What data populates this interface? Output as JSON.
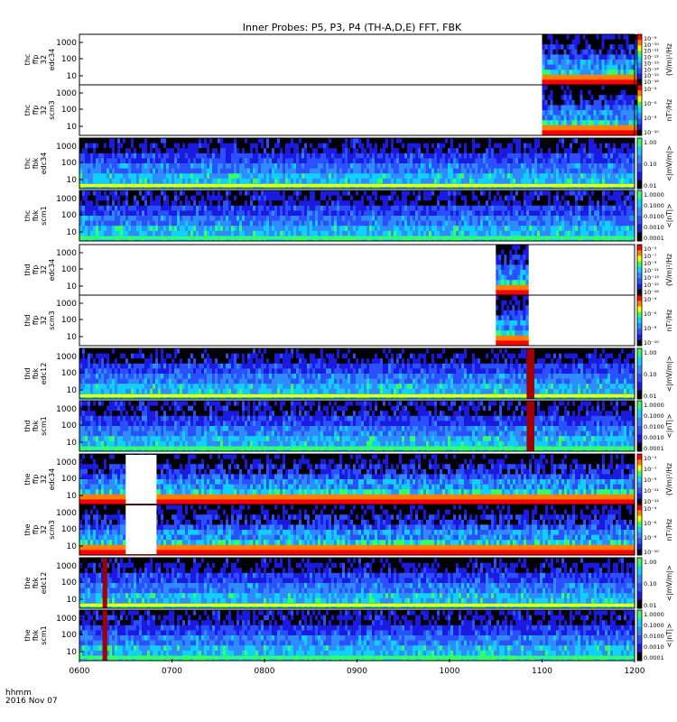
{
  "title": "Inner Probes: P5, P3, P4 (TH-A,D,E) FFT, FBK",
  "footer": {
    "line1": "hhmm",
    "line2": "2016 Nov 07"
  },
  "chart_data": {
    "type": "heatmap",
    "x_ticks": [
      "0600",
      "0700",
      "0800",
      "0900",
      "1000",
      "1100",
      "1200"
    ],
    "xlim": [
      "0600",
      "1200"
    ],
    "log_y": true,
    "panels": [
      {
        "probe": "thc",
        "kind": "ffp",
        "n": "32",
        "chan": "edc34",
        "yticks": [
          "1000",
          "100",
          "10"
        ],
        "cb_ticks": [
          "10⁻⁹",
          "10⁻¹⁰",
          "10⁻¹¹",
          "10⁻¹²",
          "10⁻¹³",
          "10⁻¹⁴",
          "10⁻¹⁵",
          "10⁻¹⁶"
        ],
        "cb_unit": "(V/m)²/Hz",
        "data_start": "1100",
        "data_end": "1200"
      },
      {
        "probe": "thc",
        "kind": "ffp",
        "n": "32",
        "chan": "scm3",
        "yticks": [
          "1000",
          "100",
          "10"
        ],
        "cb_ticks": [
          "10⁻⁴",
          "10⁻⁶",
          "10⁻⁸",
          "10⁻¹⁰"
        ],
        "cb_unit": "nT²/Hz",
        "data_start": "1100",
        "data_end": "1200"
      },
      {
        "probe": "thc",
        "kind": "fbk",
        "n": "",
        "chan": "edc34",
        "yticks": [
          "1000",
          "100",
          "10"
        ],
        "cb_ticks": [
          "1.00",
          "0.10",
          "0.01"
        ],
        "cb_unit": "<|mV/m|>",
        "data_start": "0600",
        "data_end": "1200"
      },
      {
        "probe": "thc",
        "kind": "fbk",
        "n": "",
        "chan": "scm1",
        "yticks": [
          "1000",
          "100",
          "10"
        ],
        "cb_ticks": [
          "1.0000",
          "0.1000",
          "0.0100",
          "0.0010",
          "0.0001"
        ],
        "cb_unit": "<|nT|>",
        "data_start": "0600",
        "data_end": "1200"
      },
      {
        "probe": "thd",
        "kind": "ffp",
        "n": "32",
        "chan": "edc34",
        "yticks": [
          "1000",
          "100",
          "10"
        ],
        "cb_ticks": [
          "10⁻⁵",
          "10⁻⁷",
          "10⁻⁹",
          "10⁻¹¹",
          "10⁻¹³",
          "10⁻¹⁵",
          "10⁻¹⁶"
        ],
        "cb_unit": "(V/m)²/Hz",
        "data_start": "1030",
        "data_end": "1050"
      },
      {
        "probe": "thd",
        "kind": "ffp",
        "n": "32",
        "chan": "scm3",
        "yticks": [
          "1000",
          "100",
          "10"
        ],
        "cb_ticks": [
          "10⁻⁴",
          "10⁻⁶",
          "10⁻⁸",
          "10⁻¹⁰"
        ],
        "cb_unit": "nT²/Hz",
        "data_start": "1030",
        "data_end": "1050"
      },
      {
        "probe": "thd",
        "kind": "fbk",
        "n": "",
        "chan": "edc12",
        "yticks": [
          "1000",
          "100",
          "10"
        ],
        "cb_ticks": [
          "1.00",
          "0.10",
          "0.01"
        ],
        "cb_unit": "<|mV/m|>",
        "data_start": "0600",
        "data_end": "1200"
      },
      {
        "probe": "thd",
        "kind": "fbk",
        "n": "",
        "chan": "scm1",
        "yticks": [
          "1000",
          "100",
          "10"
        ],
        "cb_ticks": [
          "1.0000",
          "0.1000",
          "0.0100",
          "0.0010",
          "0.0001"
        ],
        "cb_unit": "<|nT|>",
        "data_start": "0600",
        "data_end": "1200"
      },
      {
        "probe": "the",
        "kind": "ffp",
        "n": "32",
        "chan": "edc34",
        "yticks": [
          "1000",
          "100",
          "10"
        ],
        "cb_ticks": [
          "10⁻⁵",
          "10⁻⁷",
          "10⁻⁹",
          "10⁻¹¹",
          "10⁻¹²"
        ],
        "cb_unit": "(V/m)²/Hz",
        "data_start": "0600",
        "data_end": "1200"
      },
      {
        "probe": "the",
        "kind": "ffp",
        "n": "32",
        "chan": "scm3",
        "yticks": [
          "1000",
          "100",
          "10"
        ],
        "cb_ticks": [
          "10⁻⁴",
          "10⁻⁶",
          "10⁻⁸",
          "10⁻¹⁰"
        ],
        "cb_unit": "nT²/Hz",
        "data_start": "0600",
        "data_end": "1200"
      },
      {
        "probe": "the",
        "kind": "fbk",
        "n": "",
        "chan": "edc12",
        "yticks": [
          "1000",
          "100",
          "10"
        ],
        "cb_ticks": [
          "1.00",
          "0.10",
          "0.01"
        ],
        "cb_unit": "<|mV/m|>",
        "data_start": "0600",
        "data_end": "1200"
      },
      {
        "probe": "the",
        "kind": "fbk",
        "n": "",
        "chan": "scm1",
        "yticks": [
          "1000",
          "100",
          "10"
        ],
        "cb_ticks": [
          "1.0000",
          "0.1000",
          "0.0100",
          "0.0010",
          "0.0001"
        ],
        "cb_unit": "<|nT|>",
        "data_start": "0600",
        "data_end": "1200"
      }
    ],
    "data_gaps": [
      {
        "panel_group": "the",
        "panels": "ffp",
        "start": "0630",
        "end": "0650"
      }
    ],
    "saturated_bands": [
      {
        "panel_group": "thd",
        "panels": "fbk",
        "start": "1050",
        "end": "1055"
      },
      {
        "panel_group": "the",
        "panels": "fbk",
        "start": "0615",
        "end": "0618"
      }
    ]
  },
  "colors": {
    "background": "#ffffff",
    "dark_red": "#a00000",
    "black": "#000000",
    "deep_blue": "#1a1ae0",
    "blue": "#2a50ff",
    "mid_blue": "#2f8cff",
    "cyan": "#10d0ff",
    "green": "#33ff66",
    "yellow": "#ffff00",
    "orange": "#ff8000",
    "red": "#ff0000"
  }
}
